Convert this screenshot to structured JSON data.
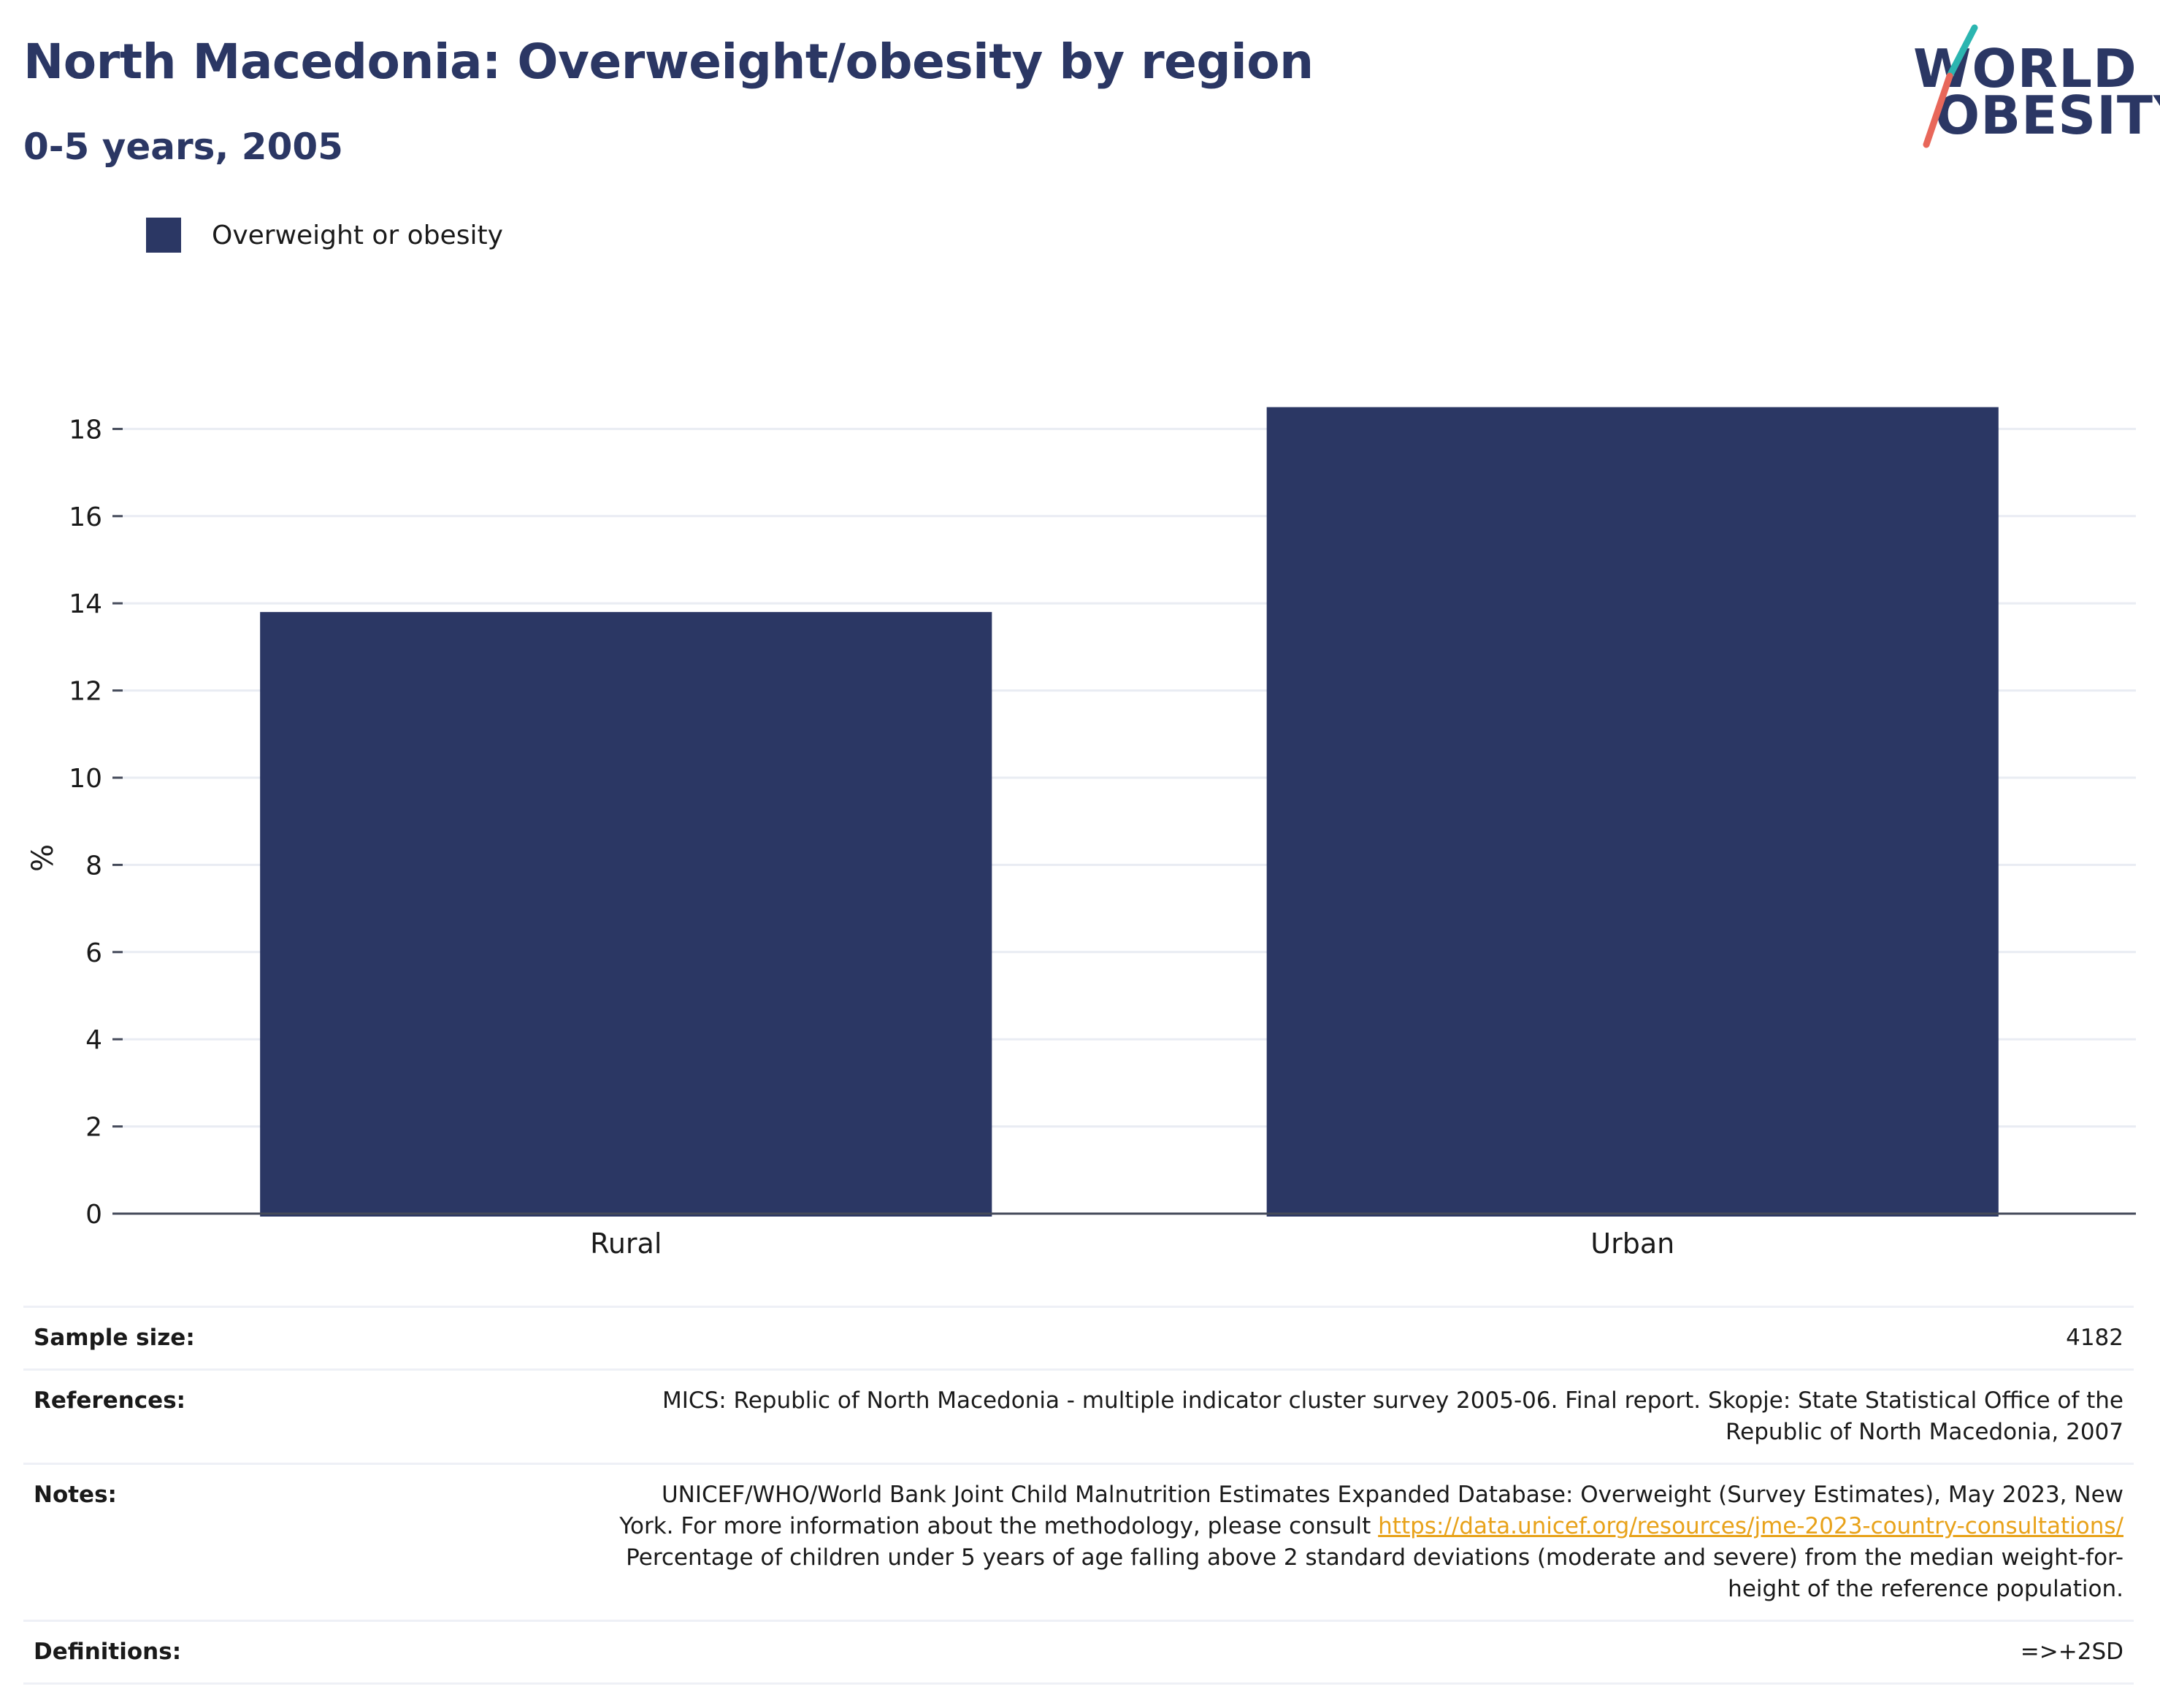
{
  "header": {
    "title": "North Macedonia: Overweight/obesity by region",
    "subtitle": "0-5 years, 2005"
  },
  "logo": {
    "line1": "WORLD",
    "line2": "OBESITY",
    "colors": {
      "text": "#2b3764",
      "slash_top": "#2bb5b0",
      "slash_bottom": "#e8675a"
    }
  },
  "legend": {
    "label": "Overweight or obesity",
    "color": "#2b3764"
  },
  "chart_data": {
    "type": "bar",
    "categories": [
      "Rural",
      "Urban"
    ],
    "series": [
      {
        "name": "Overweight or obesity",
        "values": [
          13.8,
          18.5
        ],
        "color": "#2b3764"
      }
    ],
    "xlabel": "",
    "ylabel": "%",
    "ylim": [
      0,
      19
    ],
    "yticks": [
      0,
      2,
      4,
      6,
      8,
      10,
      12,
      14,
      16,
      18
    ],
    "grid": true
  },
  "info": {
    "sample_size": {
      "label": "Sample size:",
      "value": "4182"
    },
    "references": {
      "label": "References:",
      "line1": "MICS: Republic of North Macedonia - multiple indicator cluster survey 2005-06. Final report. Skopje: State Statistical Office of the",
      "line2": "Republic of North Macedonia, 2007"
    },
    "notes": {
      "label": "Notes:",
      "line1": "UNICEF/WHO/World Bank Joint Child Malnutrition Estimates Expanded Database: Overweight (Survey Estimates), May 2023, New",
      "line2_pre": "York. For more information about the methodology, please consult ",
      "link": "https://data.unicef.org/resources/jme-2023-country-consultations/",
      "line3": "Percentage of children under 5 years of age falling above 2 standard deviations (moderate and severe) from the median weight-for-",
      "line4": "height of the reference population."
    },
    "definitions": {
      "label": "Definitions:",
      "value": "=>+2SD"
    }
  }
}
